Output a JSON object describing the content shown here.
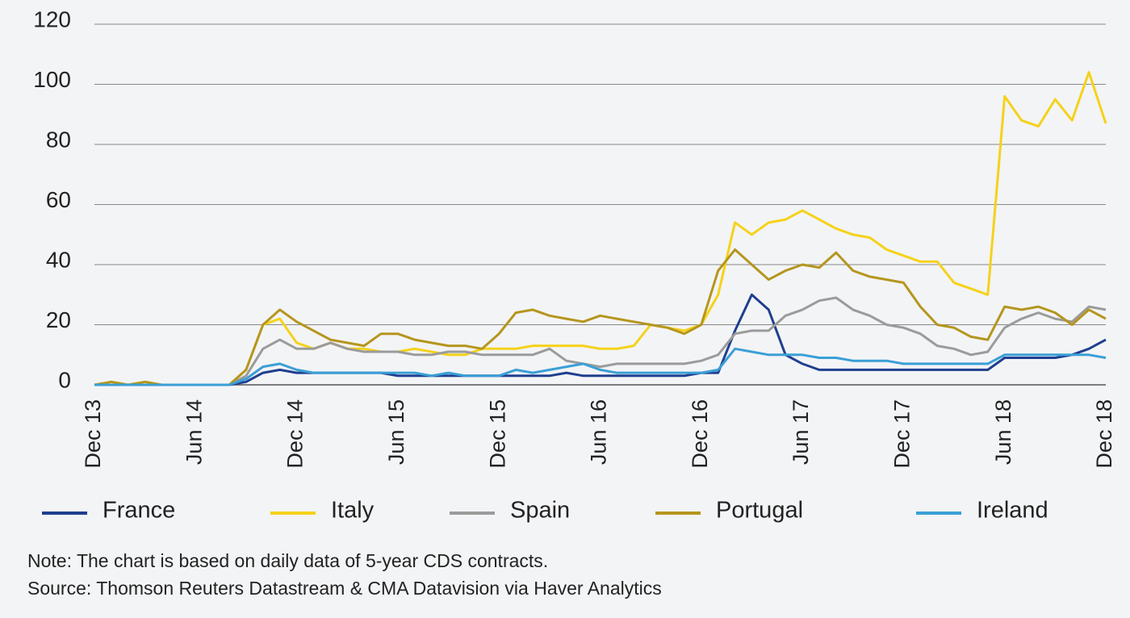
{
  "chart_data": {
    "type": "line",
    "categories": [
      "Dec 13",
      null,
      null,
      null,
      null,
      null,
      "Jun 14",
      null,
      null,
      null,
      null,
      null,
      "Dec 14",
      null,
      null,
      null,
      null,
      null,
      "Jun 15",
      null,
      null,
      null,
      null,
      null,
      "Dec 15",
      null,
      null,
      null,
      null,
      null,
      "Jun 16",
      null,
      null,
      null,
      null,
      null,
      "Dec 16",
      null,
      null,
      null,
      null,
      null,
      "Jun 17",
      null,
      null,
      null,
      null,
      null,
      "Dec 17",
      null,
      null,
      null,
      null,
      null,
      "Jun 18",
      null,
      null,
      null,
      null,
      null,
      "Dec 18"
    ],
    "series": [
      {
        "name": "France",
        "color": "#1f3f8f",
        "values": [
          0,
          0,
          0,
          0,
          0,
          0,
          0,
          0,
          0,
          1,
          4,
          5,
          4,
          4,
          4,
          4,
          4,
          4,
          3,
          3,
          3,
          3,
          3,
          3,
          3,
          3,
          3,
          3,
          4,
          3,
          3,
          3,
          3,
          3,
          3,
          3,
          4,
          4,
          18,
          30,
          25,
          10,
          7,
          5,
          5,
          5,
          5,
          5,
          5,
          5,
          5,
          5,
          5,
          5,
          9,
          9,
          9,
          9,
          10,
          12,
          15
        ]
      },
      {
        "name": "Italy",
        "color": "#f5d21a",
        "values": [
          0,
          1,
          0,
          1,
          0,
          0,
          0,
          0,
          0,
          5,
          20,
          22,
          14,
          12,
          14,
          12,
          12,
          11,
          11,
          12,
          11,
          10,
          10,
          12,
          12,
          12,
          13,
          13,
          13,
          13,
          12,
          12,
          13,
          20,
          19,
          18,
          20,
          30,
          54,
          50,
          54,
          55,
          58,
          55,
          52,
          50,
          49,
          45,
          43,
          41,
          41,
          34,
          32,
          30,
          96,
          88,
          86,
          95,
          88,
          104,
          87
        ]
      },
      {
        "name": "Spain",
        "color": "#9b9b9b",
        "values": [
          0,
          0,
          0,
          0,
          0,
          0,
          0,
          0,
          0,
          3,
          12,
          15,
          12,
          12,
          14,
          12,
          11,
          11,
          11,
          10,
          10,
          11,
          11,
          10,
          10,
          10,
          10,
          12,
          8,
          7,
          6,
          7,
          7,
          7,
          7,
          7,
          8,
          10,
          17,
          18,
          18,
          23,
          25,
          28,
          29,
          25,
          23,
          20,
          19,
          17,
          13,
          12,
          10,
          11,
          19,
          22,
          24,
          22,
          21,
          26,
          25
        ]
      },
      {
        "name": "Portugal",
        "color": "#b5961e",
        "values": [
          0,
          1,
          0,
          1,
          0,
          0,
          0,
          0,
          0,
          5,
          20,
          25,
          21,
          18,
          15,
          14,
          13,
          17,
          17,
          15,
          14,
          13,
          13,
          12,
          17,
          24,
          25,
          23,
          22,
          21,
          23,
          22,
          21,
          20,
          19,
          17,
          20,
          38,
          45,
          40,
          35,
          38,
          40,
          39,
          44,
          38,
          36,
          35,
          34,
          26,
          20,
          19,
          16,
          15,
          26,
          25,
          26,
          24,
          20,
          25,
          22
        ]
      },
      {
        "name": "Ireland",
        "color": "#3a9fd6",
        "values": [
          0,
          0,
          0,
          0,
          0,
          0,
          0,
          0,
          0,
          2,
          6,
          7,
          5,
          4,
          4,
          4,
          4,
          4,
          4,
          4,
          3,
          4,
          3,
          3,
          3,
          5,
          4,
          5,
          6,
          7,
          5,
          4,
          4,
          4,
          4,
          4,
          4,
          5,
          12,
          11,
          10,
          10,
          10,
          9,
          9,
          8,
          8,
          8,
          7,
          7,
          7,
          7,
          7,
          7,
          10,
          10,
          10,
          10,
          10,
          10,
          9
        ]
      }
    ],
    "ylim": [
      0,
      120
    ],
    "yticks": [
      0,
      20,
      40,
      60,
      80,
      100,
      120
    ],
    "grid": true,
    "note": "Note: The chart is based on daily data of 5-year CDS contracts.",
    "source": "Source: Thomson Reuters Datastream & CMA Datavision via Haver Analytics"
  }
}
